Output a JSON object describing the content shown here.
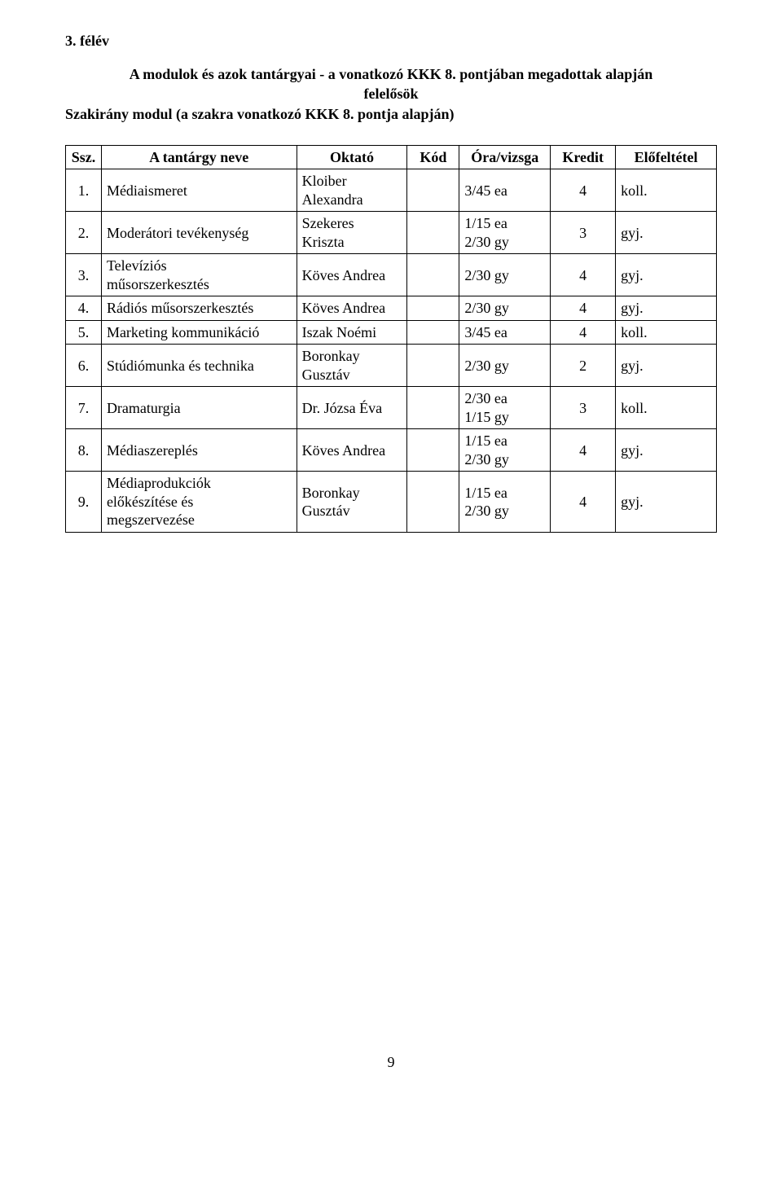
{
  "section_title": "3. félév",
  "heading": {
    "line1": "A modulok és azok tantárgyai - a vonatkozó KKK 8. pontjában megadottak alapján",
    "line2": "felelősök",
    "line3": "Szakirány modul (a szakra vonatkozó KKK 8. pontja alapján)"
  },
  "headers": {
    "num": "Ssz.",
    "name": "A tantárgy neve",
    "okt": "Oktató",
    "kod": "Kód",
    "ora": "Óra/vizsga",
    "kredit": "Kredit",
    "elo": "Előfeltétel"
  },
  "rows": [
    {
      "n": "1.",
      "name": "Médiaismeret",
      "okt": "Kloiber\nAlexandra",
      "kod": "",
      "ora": "3/45 ea",
      "kredit": "4",
      "elo": "koll."
    },
    {
      "n": "2.",
      "name": "Moderátori tevékenység",
      "okt": "Szekeres\nKriszta",
      "kod": "",
      "ora": "1/15 ea\n2/30 gy",
      "kredit": "3",
      "elo": "gyj."
    },
    {
      "n": "3.",
      "name": "Televíziós\nműsorszerkesztés",
      "okt": "Köves Andrea",
      "kod": "",
      "ora": "2/30 gy",
      "kredit": "4",
      "elo": "gyj."
    },
    {
      "n": "4.",
      "name": "Rádiós műsorszerkesztés",
      "okt": "Köves Andrea",
      "kod": "",
      "ora": "2/30 gy",
      "kredit": "4",
      "elo": "gyj."
    },
    {
      "n": "5.",
      "name": "Marketing kommunikáció",
      "okt": "Iszak Noémi",
      "kod": "",
      "ora": "3/45 ea",
      "kredit": "4",
      "elo": "koll."
    },
    {
      "n": "6.",
      "name": "Stúdiómunka és technika",
      "okt": "Boronkay\nGusztáv",
      "kod": "",
      "ora": "2/30 gy",
      "kredit": "2",
      "elo": "gyj."
    },
    {
      "n": "7.",
      "name": "Dramaturgia",
      "okt": "Dr. Józsa Éva",
      "kod": "",
      "ora": "2/30 ea\n1/15 gy",
      "kredit": "3",
      "elo": "koll."
    },
    {
      "n": "8.",
      "name": "Médiaszereplés",
      "okt": "Köves Andrea",
      "kod": "",
      "ora": "1/15 ea\n2/30 gy",
      "kredit": "4",
      "elo": "gyj."
    },
    {
      "n": "9.",
      "name": "Médiaprodukciók\nelőkészítése és\nmegszervezése",
      "okt": "Boronkay\nGusztáv",
      "kod": "",
      "ora": "1/15 ea\n2/30 gy",
      "kredit": "4",
      "elo": "gyj."
    }
  ],
  "page_number": "9",
  "style": {
    "font_family": "Times New Roman",
    "body_font_size_pt": 13.5,
    "text_color": "#000000",
    "background_color": "#ffffff",
    "border_color": "#000000",
    "col_widths_pct": {
      "num": 5.5,
      "name": 30,
      "okt": 17,
      "kod": 8,
      "ora": 14,
      "kredit": 10,
      "elo": 15.5
    }
  }
}
